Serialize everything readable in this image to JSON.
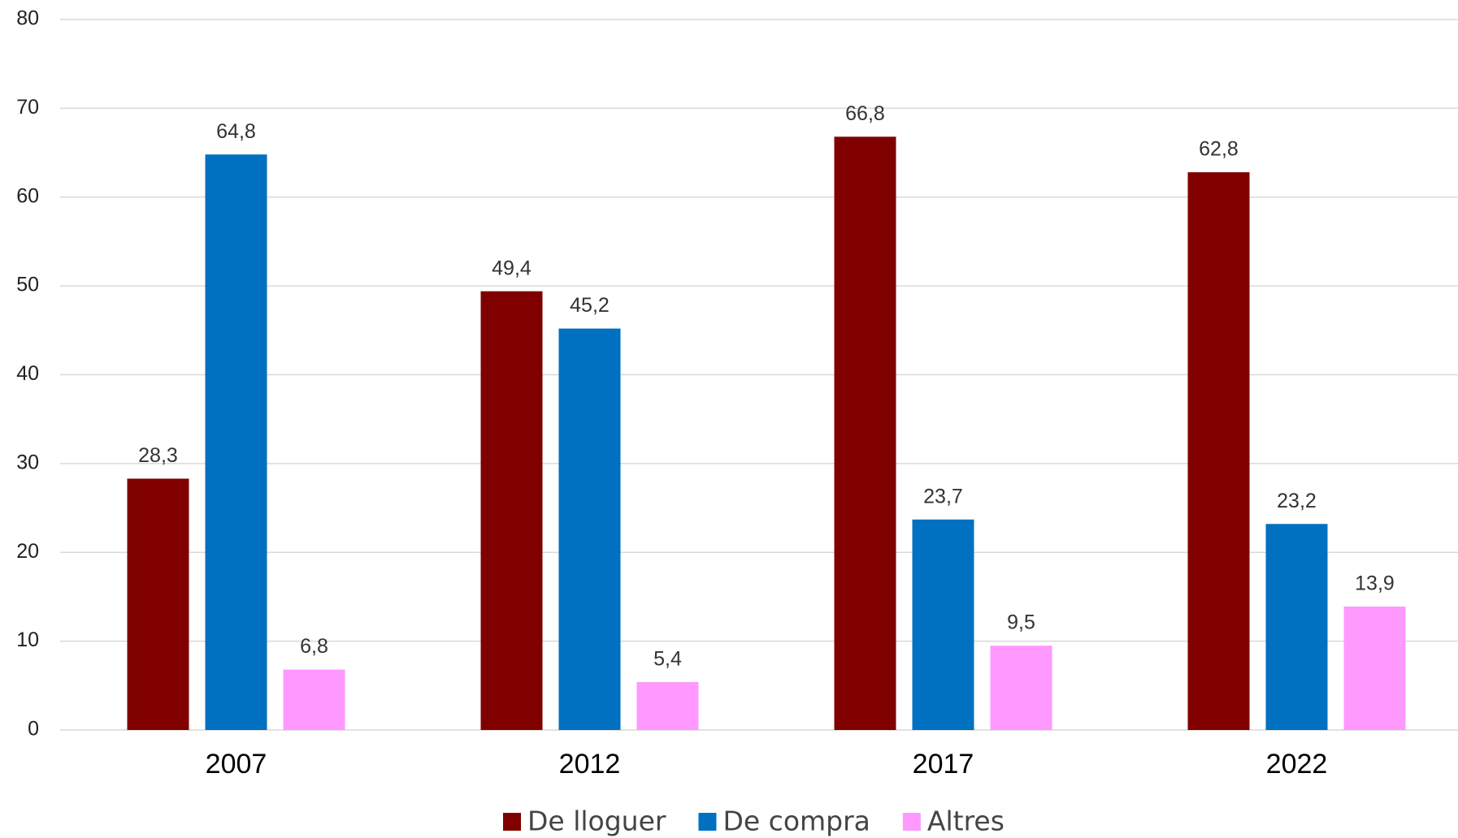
{
  "chart_data": {
    "type": "bar",
    "categories": [
      "2007",
      "2012",
      "2017",
      "2022"
    ],
    "series": [
      {
        "name": "De lloguer",
        "color": "#800000",
        "values": [
          28.3,
          49.4,
          66.8,
          62.8
        ],
        "value_labels": [
          "28,3",
          "49,4",
          "66,8",
          "62,8"
        ]
      },
      {
        "name": "De compra",
        "color": "#0070c0",
        "values": [
          64.8,
          45.2,
          23.7,
          23.2
        ],
        "value_labels": [
          "64,8",
          "45,2",
          "23,7",
          "23,2"
        ]
      },
      {
        "name": "Altres",
        "color": "#ff99ff",
        "values": [
          6.8,
          5.4,
          9.5,
          13.9
        ],
        "value_labels": [
          "6,8",
          "5,4",
          "9,5",
          "13,9"
        ]
      }
    ],
    "ylim": [
      0,
      80
    ],
    "yticks": [
      0,
      10,
      20,
      30,
      40,
      50,
      60,
      70,
      80
    ],
    "grid": true,
    "legend": "bottom"
  }
}
